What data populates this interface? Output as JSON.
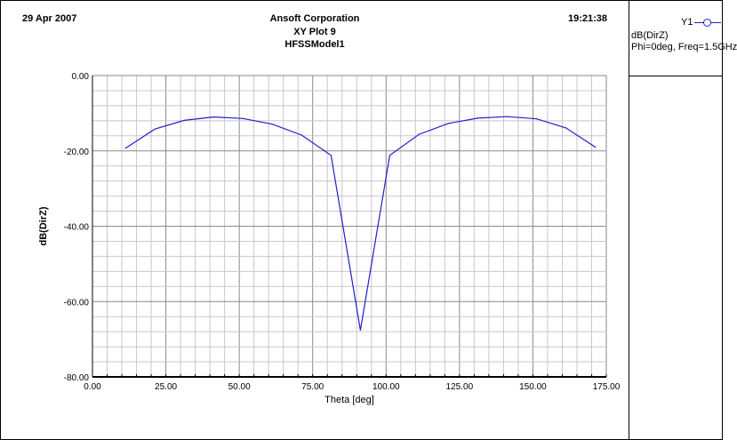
{
  "header": {
    "date": "29 Apr 2007",
    "company": "Ansoft Corporation",
    "plot_name": "XY Plot 9",
    "model": "HFSSModel1",
    "time": "19:21:38"
  },
  "legend": {
    "key": "Y1",
    "series_name": "dB(DirZ)",
    "series_desc": "Phi=0deg, Freq=1.5GHz",
    "line_color": "#2020c8"
  },
  "chart_data": {
    "type": "line",
    "xlabel": "Theta [deg]",
    "ylabel": "dB(DirZ)",
    "xlim": [
      0,
      175
    ],
    "ylim": [
      -80,
      0
    ],
    "xticks": [
      "0.00",
      "25.00",
      "50.00",
      "75.00",
      "100.00",
      "125.00",
      "150.00",
      "175.00"
    ],
    "yticks": [
      "0.00",
      "-20.00",
      "-40.00",
      "-60.00",
      "-80.00"
    ],
    "grid": true,
    "series": [
      {
        "name": "dB(DirZ)",
        "x": [
          11.25,
          21.25,
          31.25,
          41.25,
          51.25,
          61.25,
          71.25,
          81.25,
          91.25,
          101.25,
          111.25,
          121.25,
          131.25,
          141.25,
          151.25,
          161.25,
          171.25
        ],
        "y": [
          -19.3,
          -14.2,
          -11.9,
          -11.0,
          -11.4,
          -12.9,
          -15.8,
          -21.2,
          -67.6,
          -21.2,
          -15.6,
          -12.7,
          -11.3,
          -10.9,
          -11.5,
          -13.9,
          -19.0
        ]
      }
    ]
  }
}
